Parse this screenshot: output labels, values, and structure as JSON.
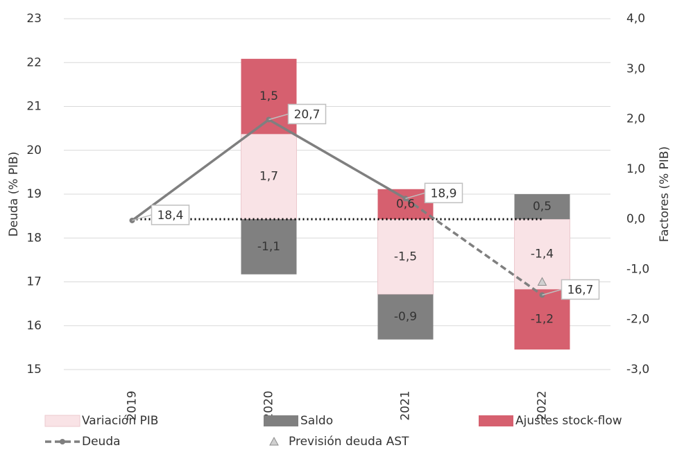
{
  "chart_data": {
    "type": "bar",
    "categories": [
      "2019",
      "2020",
      "2021",
      "2022"
    ],
    "ylabel": "Deuda (% PIB)",
    "y2label": "Factores (% PIB)",
    "ylim": [
      15,
      23
    ],
    "yticks": [
      15,
      16,
      17,
      18,
      19,
      20,
      21,
      22,
      23
    ],
    "y2lim": [
      -3,
      4
    ],
    "y2ticks": [
      {
        "value": -3,
        "label": "-3,0"
      },
      {
        "value": -2,
        "label": "-2,0"
      },
      {
        "value": -1,
        "label": "-1,0"
      },
      {
        "value": 0,
        "label": "0,0"
      },
      {
        "value": 1,
        "label": "1,0"
      },
      {
        "value": 2,
        "label": "2,0"
      },
      {
        "value": 3,
        "label": "3,0"
      },
      {
        "value": 4,
        "label": "4,0"
      }
    ],
    "grid": true,
    "series": [
      {
        "name": "Variación PIB",
        "type": "bar",
        "axis": "y2",
        "color": "#f9e3e6",
        "values": [
          null,
          1.7,
          -1.5,
          -1.4
        ],
        "value_labels": [
          null,
          "1,7",
          "-1,5",
          "-1,4"
        ]
      },
      {
        "name": "Saldo",
        "type": "bar",
        "axis": "y2",
        "color": "#808080",
        "values": [
          null,
          -1.1,
          -0.9,
          0.5
        ],
        "value_labels": [
          null,
          "-1,1",
          "-0,9",
          "0,5"
        ]
      },
      {
        "name": "Ajustes stock-flow",
        "type": "bar",
        "axis": "y2",
        "color": "#d6606f",
        "values": [
          null,
          1.5,
          0.6,
          -1.2
        ],
        "value_labels": [
          null,
          "1,5",
          "0,6",
          "-1,2"
        ]
      },
      {
        "name": "Deuda",
        "type": "line",
        "color": "#7f7f7f",
        "values": [
          18.4,
          20.7,
          18.9,
          16.7
        ],
        "value_labels": [
          "18,4",
          "20,7",
          "18,9",
          "16,7"
        ]
      },
      {
        "name": "Previsión deuda AST",
        "type": "marker",
        "color": "#a6a6a6",
        "values": [
          null,
          null,
          null,
          17.0
        ]
      }
    ]
  }
}
